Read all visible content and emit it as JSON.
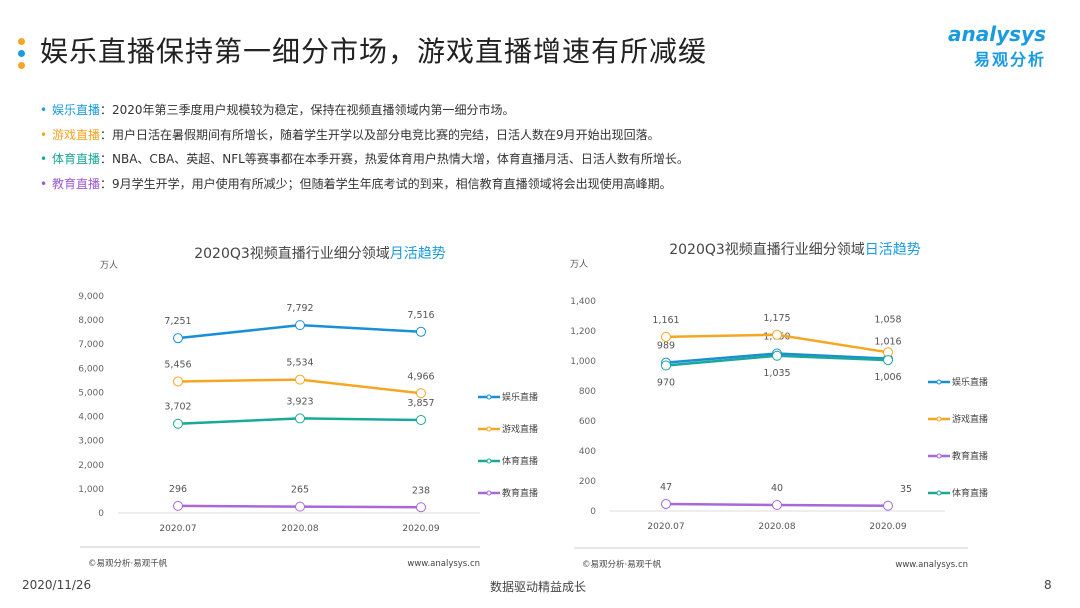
{
  "header": {
    "title": "娱乐直播保持第一细分市场，游戏直播增速有所减缓",
    "logo_en": "analysys",
    "logo_cn": "易观分析",
    "dot_colors": [
      "#f5a623",
      "#1a9be0",
      "#f5a623"
    ]
  },
  "bullets": [
    {
      "label": "娱乐直播",
      "text": "：2020年第三季度用户规模较为稳定，保持在视频直播领域内第一细分市场。",
      "color": "#1a9be0"
    },
    {
      "label": "游戏直播",
      "text": "：用户日活在暑假期间有所增长，随着学生开学以及部分电竞比赛的完结，日活人数在9月开始出现回落。",
      "color": "#f5a623"
    },
    {
      "label": "体育直播",
      "text": "：NBA、CBA、英超、NFL等赛事都在本季开赛，热爱体育用户热情大增，体育直播月活、日活人数有所增长。",
      "color": "#1aa89a"
    },
    {
      "label": "教育直播",
      "text": "：9月学生开学，用户使用有所减少；但随着学生年底考试的到来，相信教育直播领域将会出现使用高峰期。",
      "color": "#9b59d0"
    }
  ],
  "watermark": "analysys 易观分析",
  "chart_data": [
    {
      "type": "line",
      "title": "2020Q3视频直播行业细分领域",
      "title_highlight": "月活趋势",
      "ylabel": "万人",
      "categories": [
        "2020.07",
        "2020.08",
        "2020.09"
      ],
      "ylim": [
        0,
        9000
      ],
      "yticks": [
        "0",
        "1,000",
        "2,000",
        "3,000",
        "4,000",
        "5,000",
        "6,000",
        "7,000",
        "8,000",
        "9,000"
      ],
      "legend": "right",
      "series": [
        {
          "name": "娱乐直播",
          "color": "#1a8fd6",
          "values": [
            7251,
            7792,
            7516
          ],
          "labels": [
            "7,251",
            "7,792",
            "7,516"
          ]
        },
        {
          "name": "游戏直播",
          "color": "#f5a623",
          "values": [
            5456,
            5534,
            4966
          ],
          "labels": [
            "5,456",
            "5,534",
            "4,966"
          ]
        },
        {
          "name": "体育直播",
          "color": "#1aa89a",
          "values": [
            3702,
            3923,
            3857
          ],
          "labels": [
            "3,702",
            "3,923",
            "3,857"
          ]
        },
        {
          "name": "教育直播",
          "color": "#a868d8",
          "values": [
            296,
            265,
            238
          ],
          "labels": [
            "296",
            "265",
            "238"
          ]
        }
      ],
      "source": "©易观分析·易观千帆",
      "url": "www.analysys.cn"
    },
    {
      "type": "line",
      "title": "2020Q3视频直播行业细分领域",
      "title_highlight": "日活趋势",
      "ylabel": "万人",
      "categories": [
        "2020.07",
        "2020.08",
        "2020.09"
      ],
      "ylim": [
        0,
        1400
      ],
      "yticks": [
        "0",
        "200",
        "400",
        "600",
        "800",
        "1,000",
        "1,200",
        "1,400"
      ],
      "legend": "right",
      "series": [
        {
          "name": "娱乐直播",
          "color": "#1a8fd6",
          "values": [
            989,
            1050,
            1016
          ],
          "labels": [
            "989",
            "1,050",
            "1,016"
          ]
        },
        {
          "name": "游戏直播",
          "color": "#f5a623",
          "values": [
            1161,
            1175,
            1058
          ],
          "labels": [
            "1,161",
            "1,175",
            "1,058"
          ]
        },
        {
          "name": "教育直播",
          "color": "#a868d8",
          "values": [
            47,
            40,
            35
          ],
          "labels": [
            "47",
            "40",
            "35"
          ]
        },
        {
          "name": "体育直播",
          "color": "#1aa89a",
          "values": [
            970,
            1035,
            1006
          ],
          "labels": [
            "970",
            "1,035",
            "1,006"
          ]
        }
      ],
      "source": "©易观分析·易观千帆",
      "url": "www.analysys.cn"
    }
  ],
  "footer": {
    "date": "2020/11/26",
    "slogan": "数据驱动精益成长",
    "page": "8"
  }
}
